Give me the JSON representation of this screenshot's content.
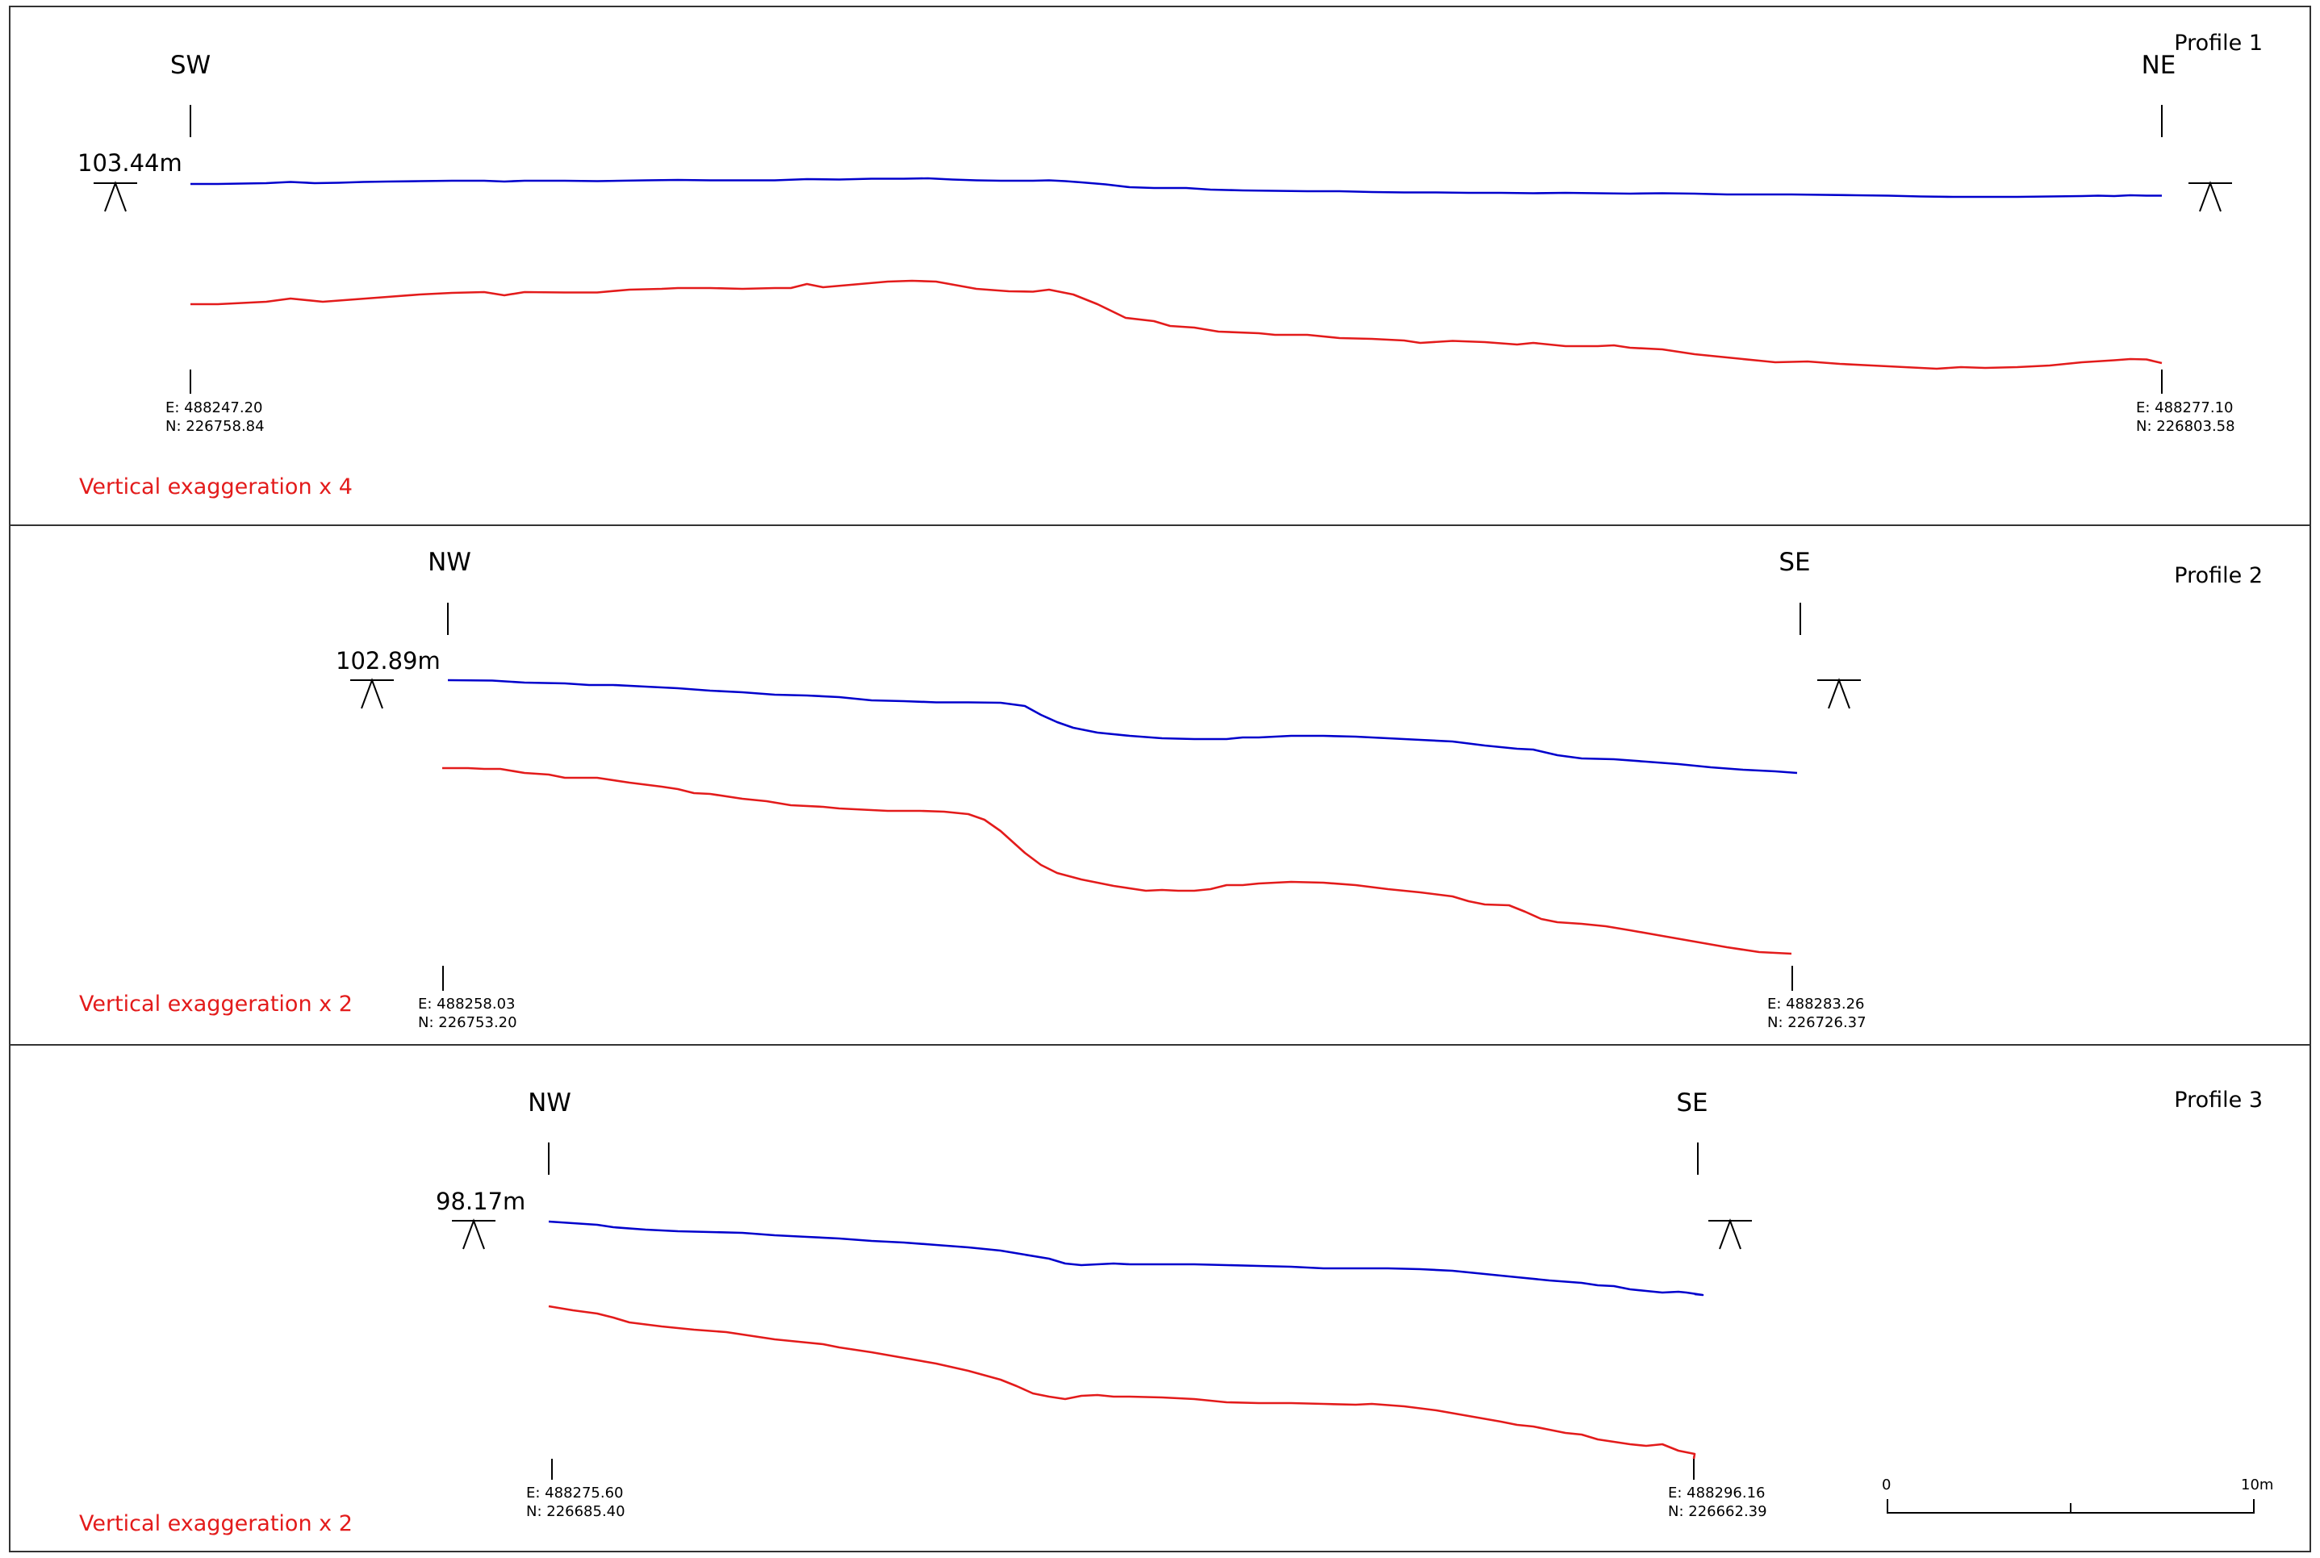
{
  "colors": {
    "upper_line": "#0000cc",
    "lower_line": "#e31b1b",
    "exaggeration_text": "#e31b1b",
    "frame": "#333333"
  },
  "profiles": [
    {
      "title": "Profile 1",
      "start_dir": "SW",
      "end_dir": "NE",
      "datum_level": "103.44m",
      "start_easting": "E: 488247.20",
      "start_northing": "N: 226758.84",
      "end_easting": "E: 488277.10",
      "end_northing": "N: 226803.58",
      "vertical_exaggeration": "Vertical exaggeration x 4"
    },
    {
      "title": "Profile 2",
      "start_dir": "NW",
      "end_dir": "SE",
      "datum_level": "102.89m",
      "start_easting": "E: 488258.03",
      "start_northing": "N: 226753.20",
      "end_easting": "E: 488283.26",
      "end_northing": "N: 226726.37",
      "vertical_exaggeration": "Vertical exaggeration x 2"
    },
    {
      "title": "Profile 3",
      "start_dir": "NW",
      "end_dir": "SE",
      "datum_level": "98.17m",
      "start_easting": "E: 488275.60",
      "start_northing": "N: 226685.40",
      "end_easting": "E: 488296.16",
      "end_northing": "N: 226662.39",
      "vertical_exaggeration": "Vertical exaggeration x 2"
    }
  ],
  "scale_bar": {
    "min_label": "0",
    "max_label": "10m"
  }
}
